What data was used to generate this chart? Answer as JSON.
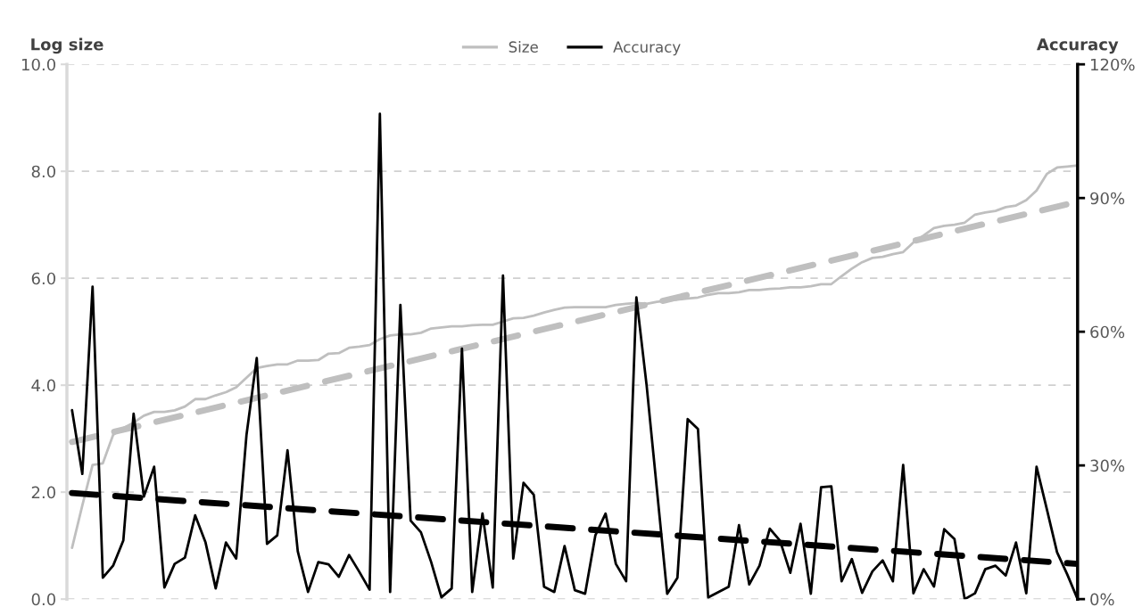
{
  "chart_data": {
    "type": "line",
    "categories": [
      null,
      null,
      null,
      null,
      null,
      null,
      null,
      null,
      null,
      null,
      null,
      null,
      null,
      null,
      null,
      null,
      null,
      null,
      null,
      null,
      null,
      null,
      null,
      null,
      null,
      null,
      null,
      null,
      null,
      null,
      null,
      null,
      null,
      null,
      null,
      null,
      null,
      null,
      null,
      null,
      null,
      null,
      null,
      null,
      null,
      null,
      null,
      null,
      null,
      null,
      null,
      null,
      null,
      null,
      null,
      null,
      null,
      null,
      null,
      null,
      null,
      null,
      null,
      null,
      null,
      null,
      null,
      null,
      null,
      null,
      null,
      null,
      null,
      null,
      null,
      null,
      null,
      null,
      null,
      null,
      null,
      null,
      null,
      null,
      null,
      null,
      null,
      null,
      null,
      null,
      null,
      null,
      null,
      null,
      null,
      null,
      null,
      null,
      null
    ],
    "ylabel": "Log size",
    "y2label": "Accuracy",
    "ylim": [
      0,
      10
    ],
    "yticks": [
      {
        "value": 0,
        "label": "0.0"
      },
      {
        "value": 2,
        "label": "2.0"
      },
      {
        "value": 4,
        "label": "4.0"
      },
      {
        "value": 6,
        "label": "6.0"
      },
      {
        "value": 8,
        "label": "8.0"
      },
      {
        "value": 10,
        "label": "10.0"
      }
    ],
    "y2lim": [
      0,
      120
    ],
    "y2ticks": [
      {
        "value": 0,
        "label": "0%"
      },
      {
        "value": 30,
        "label": "30%"
      },
      {
        "value": 60,
        "label": "60%"
      },
      {
        "value": 90,
        "label": "90%"
      },
      {
        "value": 120,
        "label": "120%"
      }
    ],
    "grid": "y",
    "legend": "top",
    "marker": "none",
    "series": [
      {
        "name": "Size",
        "color": "#bfbfbf",
        "axis": "y",
        "line_style": "solid",
        "values": [
          0.96,
          1.75,
          2.51,
          2.54,
          3.07,
          3.2,
          3.3,
          3.43,
          3.5,
          3.5,
          3.53,
          3.6,
          3.74,
          3.74,
          3.81,
          3.87,
          3.96,
          4.14,
          4.32,
          4.36,
          4.39,
          4.39,
          4.46,
          4.46,
          4.47,
          4.59,
          4.6,
          4.7,
          4.72,
          4.75,
          4.86,
          4.93,
          4.95,
          4.95,
          4.98,
          5.06,
          5.08,
          5.1,
          5.1,
          5.12,
          5.13,
          5.13,
          5.19,
          5.25,
          5.26,
          5.3,
          5.36,
          5.41,
          5.45,
          5.46,
          5.46,
          5.46,
          5.46,
          5.5,
          5.52,
          5.54,
          5.52,
          5.56,
          5.58,
          5.6,
          5.62,
          5.64,
          5.69,
          5.72,
          5.72,
          5.74,
          5.78,
          5.78,
          5.8,
          5.81,
          5.83,
          5.83,
          5.85,
          5.89,
          5.89,
          6.04,
          6.18,
          6.3,
          6.38,
          6.4,
          6.45,
          6.49,
          6.67,
          6.8,
          6.94,
          6.98,
          7.0,
          7.04,
          7.19,
          7.23,
          7.26,
          7.33,
          7.36,
          7.46,
          7.64,
          7.95,
          8.07,
          8.09,
          8.11
        ]
      },
      {
        "name": "Accuracy",
        "color": "#000000",
        "axis": "y2",
        "line_style": "solid",
        "values": [
          42.4,
          28.1,
          70.1,
          4.8,
          7.5,
          13.2,
          41.6,
          23.0,
          29.7,
          2.6,
          7.9,
          9.3,
          18.8,
          12.8,
          2.4,
          12.7,
          9.1,
          36.8,
          54.1,
          12.4,
          14.3,
          33.4,
          10.7,
          1.6,
          8.3,
          7.8,
          5.0,
          9.9,
          6.1,
          2.1,
          108.9,
          1.6,
          66.0,
          17.6,
          15.0,
          8.3,
          0.4,
          2.4,
          56.2,
          1.6,
          19.2,
          2.6,
          72.6,
          9.1,
          26.1,
          23.4,
          2.8,
          1.6,
          11.9,
          2.0,
          1.2,
          14.3,
          19.2,
          7.9,
          4.0,
          67.7,
          47.9,
          24.6,
          1.2,
          4.8,
          40.4,
          38.2,
          0.4,
          1.6,
          2.8,
          16.6,
          3.3,
          7.5,
          15.8,
          13.1,
          5.9,
          16.9,
          1.2,
          25.1,
          25.3,
          4.0,
          9.0,
          1.4,
          6.2,
          8.7,
          4.0,
          30.1,
          1.3,
          6.7,
          2.8,
          15.7,
          13.5,
          0,
          1.3,
          6.7,
          7.5,
          5.3,
          12.7,
          1.3,
          29.7,
          20.2,
          10.5,
          5.5,
          0
        ]
      },
      {
        "color": "#bfbfbf",
        "axis": "y",
        "line_style": "dashed",
        "values": [
          2.94,
          null,
          null,
          null,
          null,
          null,
          null,
          null,
          null,
          null,
          null,
          null,
          null,
          null,
          null,
          null,
          null,
          null,
          null,
          null,
          null,
          null,
          null,
          null,
          null,
          null,
          null,
          null,
          null,
          null,
          null,
          null,
          null,
          null,
          null,
          null,
          null,
          null,
          null,
          null,
          null,
          null,
          null,
          null,
          null,
          null,
          null,
          null,
          null,
          null,
          null,
          null,
          null,
          null,
          null,
          null,
          null,
          null,
          null,
          null,
          null,
          null,
          null,
          null,
          null,
          null,
          null,
          null,
          null,
          null,
          null,
          null,
          null,
          null,
          null,
          null,
          null,
          null,
          null,
          null,
          null,
          null,
          null,
          null,
          null,
          null,
          null,
          null,
          null,
          null,
          null,
          null,
          null,
          null,
          null,
          null,
          null,
          null,
          7.43
        ]
      },
      {
        "color": "#000000",
        "axis": "y2",
        "line_style": "dashed",
        "values": [
          23.8,
          null,
          null,
          null,
          null,
          null,
          null,
          null,
          null,
          null,
          null,
          null,
          null,
          null,
          null,
          null,
          null,
          null,
          null,
          null,
          null,
          null,
          null,
          null,
          null,
          null,
          null,
          null,
          null,
          null,
          null,
          null,
          null,
          null,
          null,
          null,
          null,
          null,
          null,
          null,
          null,
          null,
          null,
          null,
          null,
          null,
          null,
          null,
          null,
          null,
          null,
          null,
          null,
          null,
          null,
          null,
          null,
          null,
          null,
          null,
          null,
          null,
          null,
          null,
          null,
          null,
          null,
          null,
          null,
          null,
          null,
          null,
          null,
          null,
          null,
          null,
          null,
          null,
          null,
          null,
          null,
          null,
          null,
          null,
          null,
          null,
          null,
          null,
          null,
          null,
          null,
          null,
          null,
          null,
          null,
          null,
          null,
          null,
          7.9
        ]
      }
    ]
  }
}
